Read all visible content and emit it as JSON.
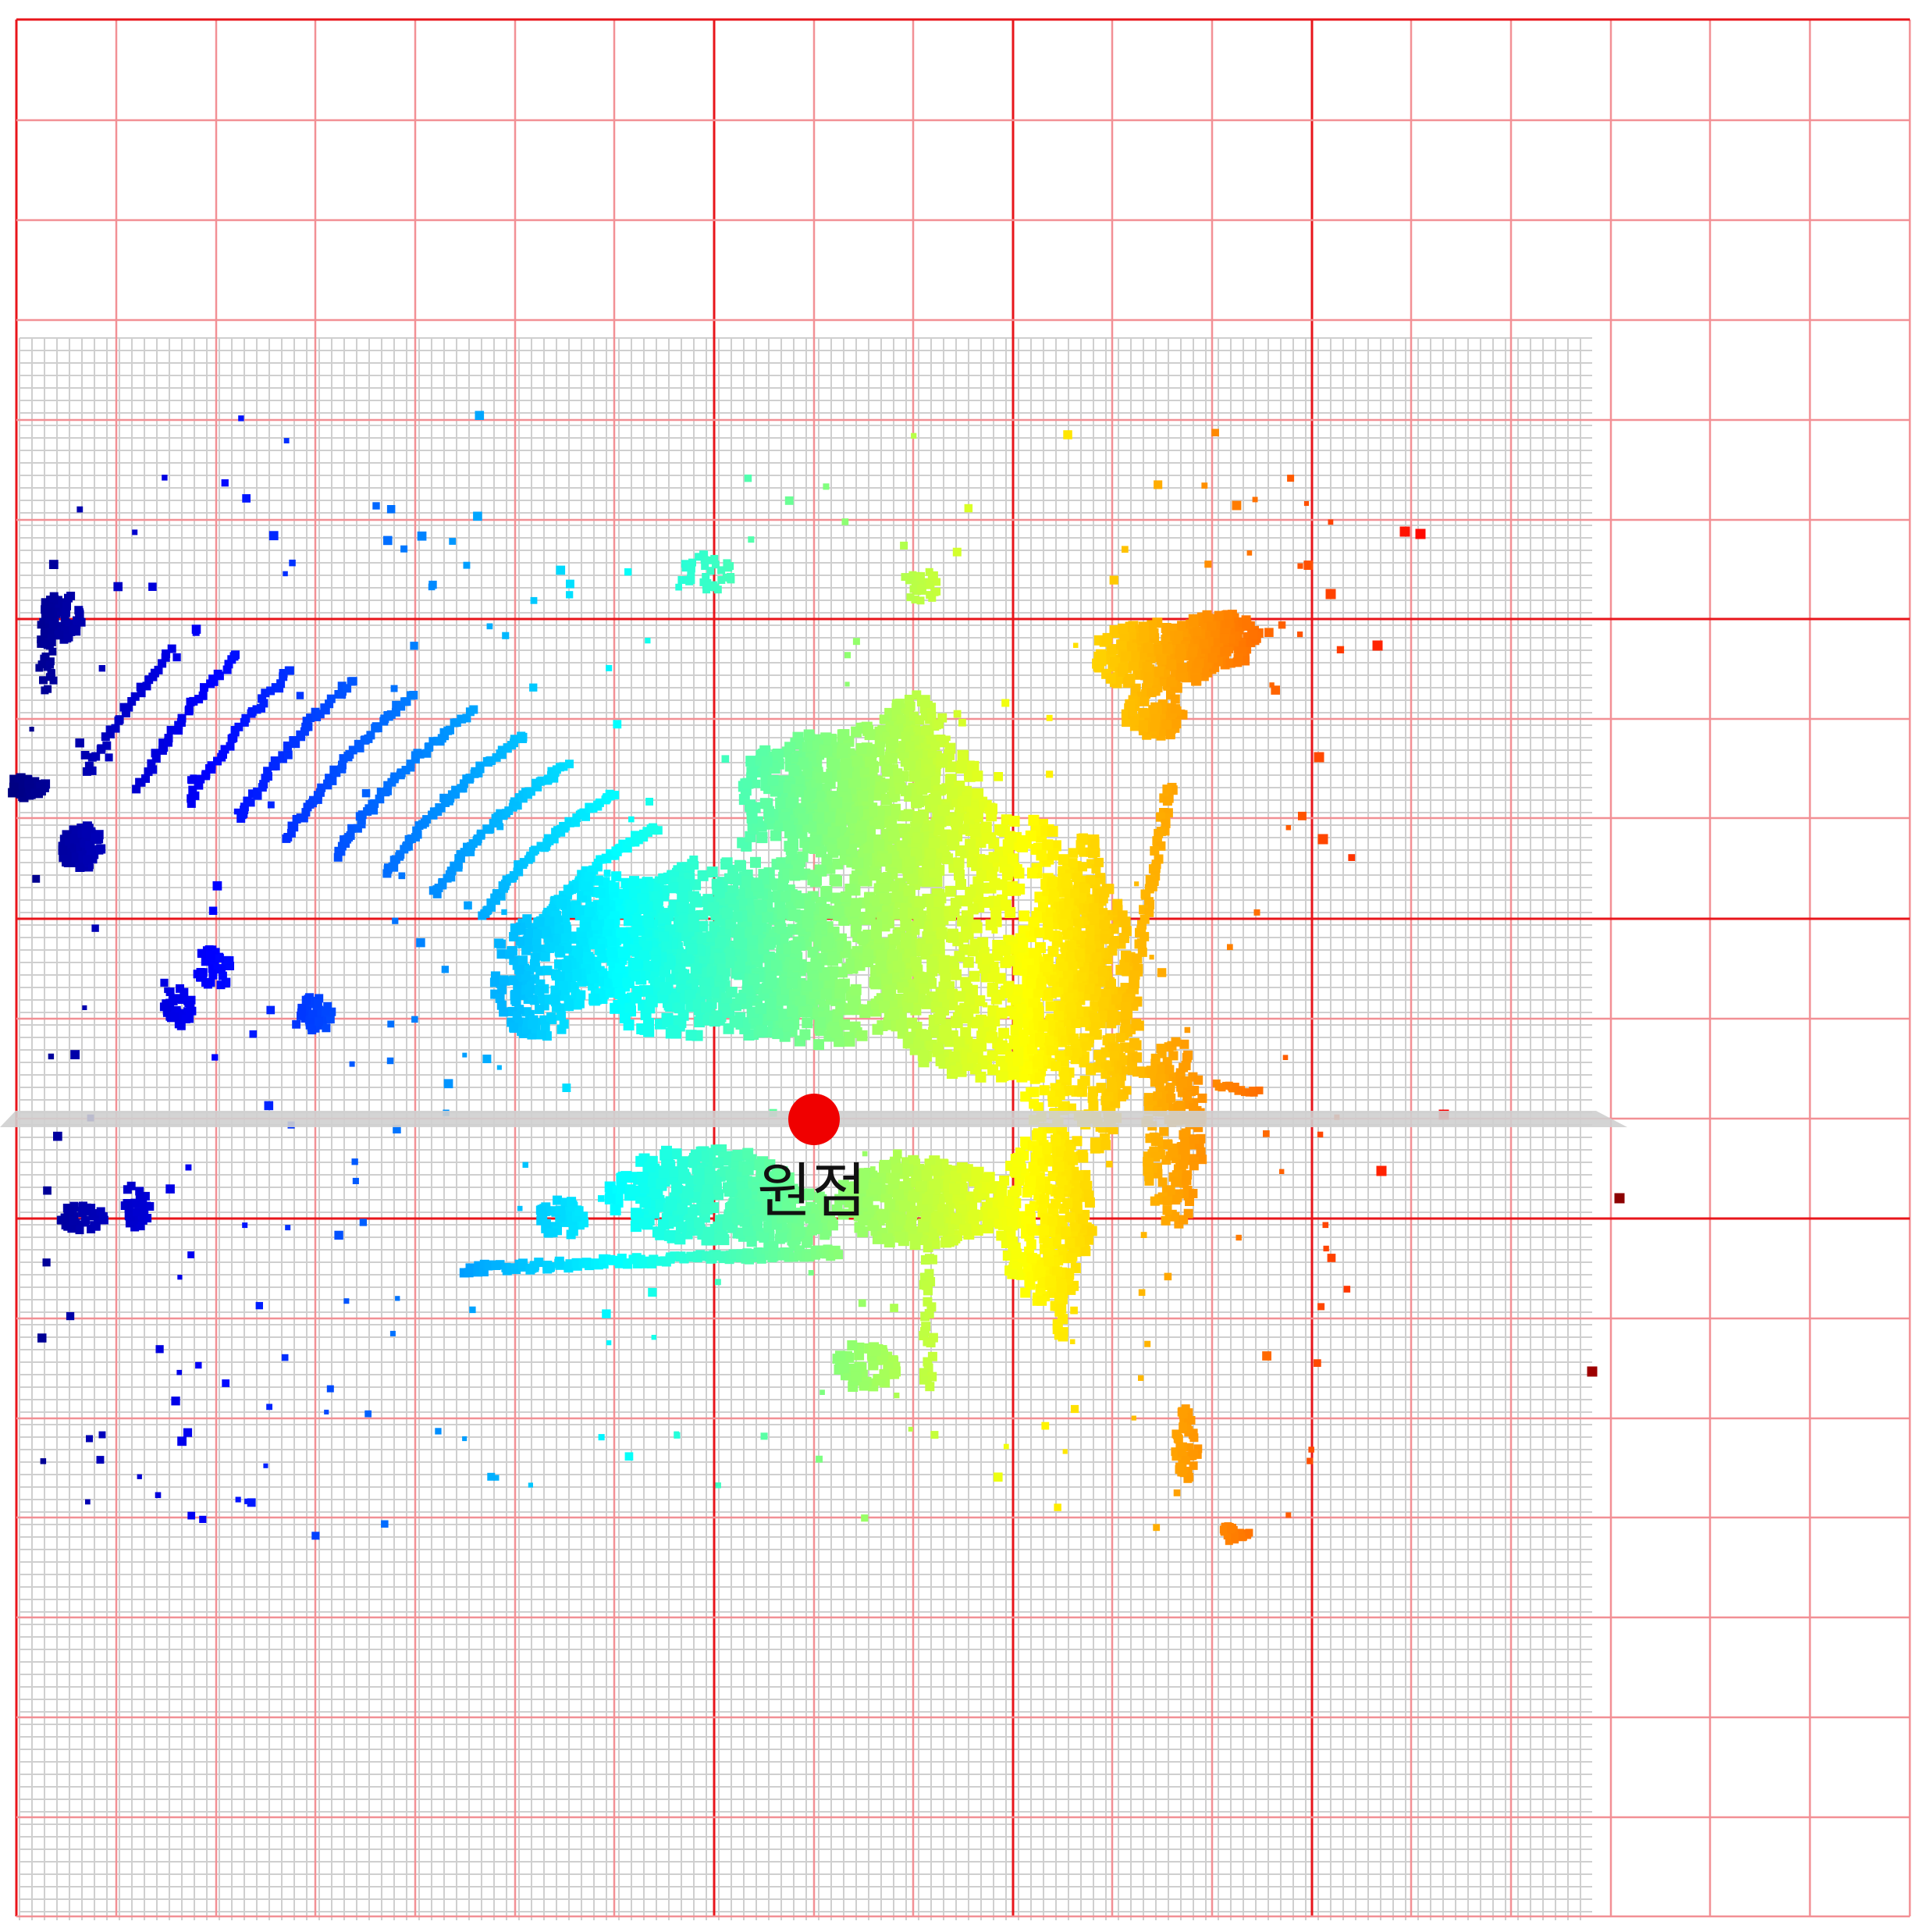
{
  "viewer": {
    "origin_label": "원점"
  },
  "colors": {
    "background": "#ffffff",
    "major_grid": "#e8151b",
    "major_grid_light": "#f29095",
    "fine_grid": "#cfcfcf",
    "ground_plane": "#c8c8c8",
    "origin_marker": "#f00000",
    "label_text": "#111111"
  },
  "icons": {
    "origin_marker": "red-dot-icon"
  }
}
